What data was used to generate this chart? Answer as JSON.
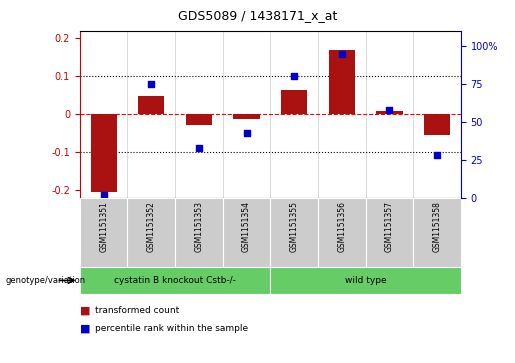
{
  "title": "GDS5089 / 1438171_x_at",
  "samples": [
    "GSM1151351",
    "GSM1151352",
    "GSM1151353",
    "GSM1151354",
    "GSM1151355",
    "GSM1151356",
    "GSM1151357",
    "GSM1151358"
  ],
  "bar_values": [
    -0.205,
    0.048,
    -0.027,
    -0.012,
    0.065,
    0.17,
    0.01,
    -0.055
  ],
  "dot_values": [
    2,
    75,
    33,
    43,
    80,
    95,
    58,
    28
  ],
  "groups": [
    {
      "label": "cystatin B knockout Cstb-/-",
      "start": 0,
      "end": 3,
      "color": "#66cc66"
    },
    {
      "label": "wild type",
      "start": 4,
      "end": 7,
      "color": "#66cc66"
    }
  ],
  "bar_color": "#aa1111",
  "dot_color": "#0000cc",
  "ylim_left": [
    -0.22,
    0.22
  ],
  "ylim_right": [
    0,
    110
  ],
  "yticks_left": [
    -0.2,
    -0.1,
    0.0,
    0.1,
    0.2
  ],
  "ytick_labels_left": [
    "-0.2",
    "-0.1",
    "0",
    "0.1",
    "0.2"
  ],
  "yticks_right": [
    0,
    25,
    50,
    75,
    100
  ],
  "ytick_labels_right": [
    "0",
    "25",
    "50",
    "75",
    "100%"
  ],
  "legend_items": [
    {
      "label": "transformed count",
      "color": "#aa1111"
    },
    {
      "label": "percentile rank within the sample",
      "color": "#0000cc"
    }
  ],
  "genotype_label": "genotype/variation",
  "bar_width": 0.55,
  "left_tick_color": "#cc0000",
  "right_tick_color": "#0000cc",
  "sample_bg_color": "#cccccc",
  "group_bg_color": "#66cc66"
}
